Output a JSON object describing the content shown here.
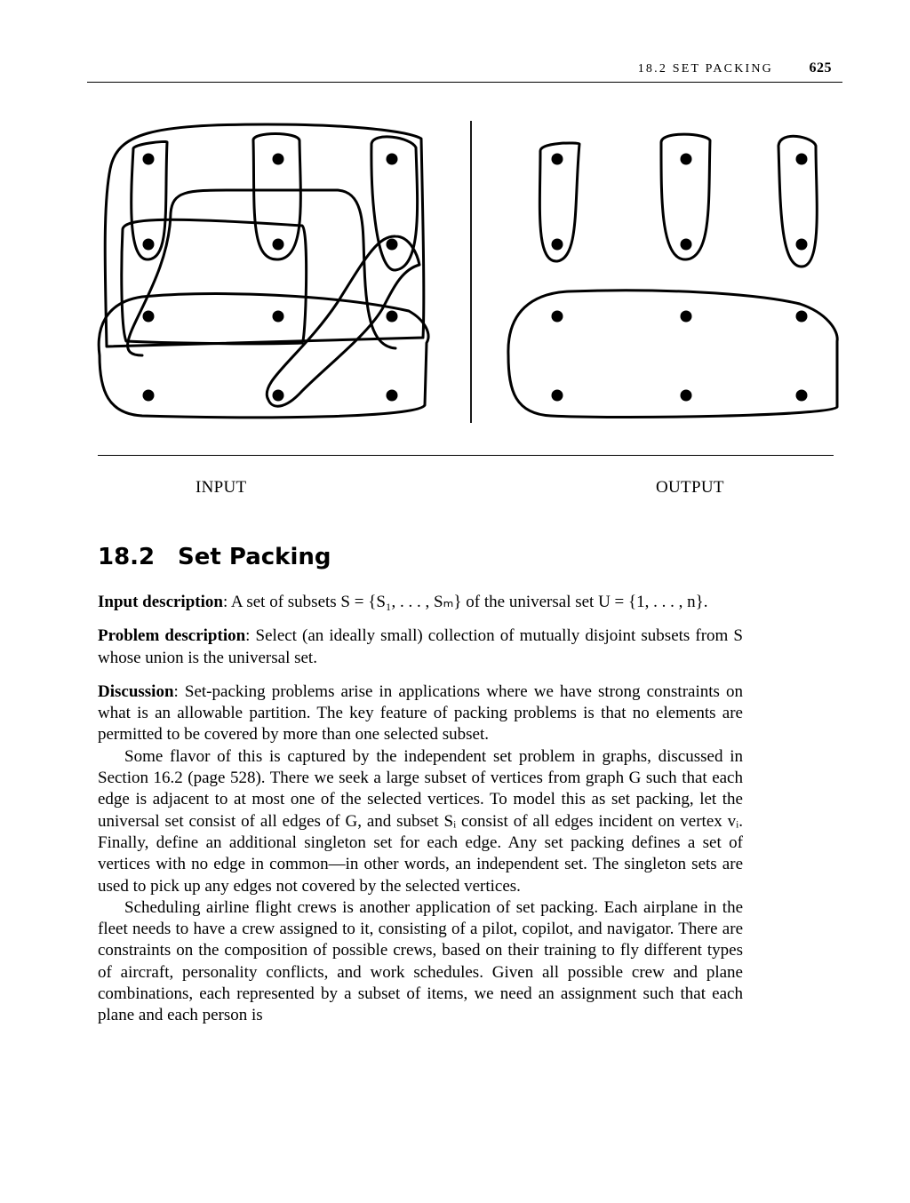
{
  "header": {
    "section": "18.2 SET PACKING",
    "page_number": "625"
  },
  "figure": {
    "input_label": "INPUT",
    "output_label": "OUTPUT"
  },
  "section": {
    "number": "18.2",
    "title": "Set Packing"
  },
  "paragraphs": {
    "input": {
      "label": "Input description",
      "text": ": A set of subsets S = {S₁, . . . , Sₘ} of the universal set U = {1, . . . , n}."
    },
    "problem": {
      "label": "Problem description",
      "text": ": Select (an ideally small) collection of mutually disjoint subsets from S whose union is the universal set."
    },
    "discussion": {
      "label": "Discussion",
      "text": ": Set-packing problems arise in applications where we have strong constraints on what is an allowable partition. The key feature of packing problems is that no elements are permitted to be covered by more than one selected subset."
    },
    "p4": "Some flavor of this is captured by the independent set problem in graphs, discussed in Section 16.2 (page 528). There we seek a large subset of vertices from graph G such that each edge is adjacent to at most one of the selected vertices. To model this as set packing, let the universal set consist of all edges of G, and subset Sᵢ consist of all edges incident on vertex vᵢ. Finally, define an additional singleton set for each edge. Any set packing defines a set of vertices with no edge in common—in other words, an independent set. The singleton sets are used to pick up any edges not covered by the selected vertices.",
    "p5": "Scheduling airline flight crews is another application of set packing. Each airplane in the fleet needs to have a crew assigned to it, consisting of a pilot, copilot, and navigator. There are constraints on the composition of possible crews, based on their training to fly different types of aircraft, personality conflicts, and work schedules. Given all possible crew and plane combinations, each represented by a subset of items, we need an assignment such that each plane and each person is"
  }
}
